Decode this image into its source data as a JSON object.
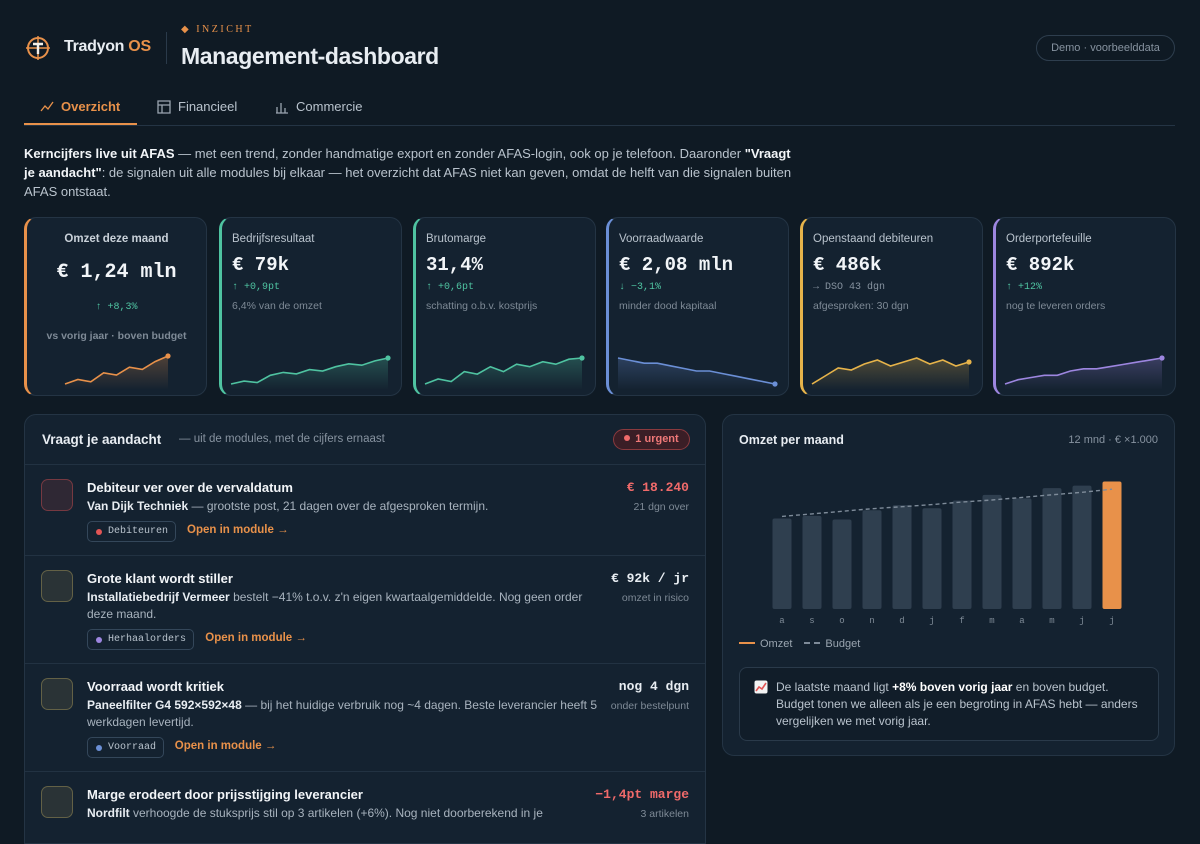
{
  "header": {
    "brand": "Tradyon",
    "brand_accent": "OS",
    "eyebrow": "INZICHT",
    "title": "Management-dashboard",
    "badge": "Demo · voorbeelddata"
  },
  "tabs": {
    "items": [
      "Overzicht",
      "Financieel",
      "Commercie"
    ],
    "active": 0
  },
  "intro": {
    "strong1": "Kerncijfers live uit AFAS",
    "text1": " — met een trend, zonder handmatige export en zonder AFAS-login, ook op je telefoon. Daaronder ",
    "strong2": "\"Vraagt je aandacht\"",
    "text2": ": de signalen uit alle modules bij elkaar — het overzicht dat AFAS niet kan geven, omdat de helft van die signalen buiten AFAS ontstaat."
  },
  "kpis": [
    {
      "label": "Omzet deze maand",
      "value": "€ 1,24 mln",
      "delta": "↑ +8,3%",
      "delta_color": "#4fc3a1",
      "note": "vs vorig jaar · boven budget",
      "color": "#e8914a",
      "spark": [
        20,
        24,
        22,
        30,
        28,
        35,
        33,
        40,
        45
      ]
    },
    {
      "label": "Bedrijfsresultaat",
      "value": "€ 79k",
      "delta": "↑ +0,9pt",
      "delta_color": "#4fc3a1",
      "note": "6,4% van de omzet",
      "color": "#4fc3a1",
      "spark": [
        10,
        12,
        11,
        16,
        18,
        17,
        20,
        19,
        22,
        24,
        23,
        26,
        28
      ]
    },
    {
      "label": "Brutomarge",
      "value": "31,4%",
      "delta": "↑ +0,6pt",
      "delta_color": "#4fc3a1",
      "note": "schatting o.b.v. kostprijs",
      "color": "#4fc3a1",
      "spark": [
        10,
        14,
        12,
        20,
        18,
        24,
        20,
        26,
        24,
        28,
        26,
        30,
        31
      ]
    },
    {
      "label": "Voorraadwaarde",
      "value": "€ 2,08 mln",
      "delta": "↓ −3,1%",
      "delta_color": "#4fc3a1",
      "note": "minder dood kapitaal",
      "color": "#6b8fd6",
      "spark": [
        30,
        29,
        28,
        28,
        27,
        26,
        25,
        25,
        24,
        23,
        22,
        21,
        20
      ]
    },
    {
      "label": "Openstaand debiteuren",
      "value": "€ 486k",
      "delta": "→ DSO 43 dgn",
      "delta_color": "#8793a0",
      "note": "afgesproken: 30 dgn",
      "color": "#e6b34a",
      "spark": [
        10,
        14,
        18,
        17,
        20,
        22,
        19,
        21,
        23,
        20,
        22,
        19,
        21
      ]
    },
    {
      "label": "Orderportefeuille",
      "value": "€ 892k",
      "delta": "↑ +12%",
      "delta_color": "#4fc3a1",
      "note": "nog te leveren orders",
      "color": "#9d86e0",
      "spark": [
        10,
        12,
        13,
        14,
        14,
        16,
        17,
        17,
        18,
        19,
        20,
        21,
        22
      ]
    }
  ],
  "attention": {
    "title": "Vraagt je aandacht",
    "subtitle": "— uit de modules, met de cijfers ernaast",
    "badge": "1 urgent",
    "items": [
      {
        "title": "Debiteur ver over de vervaldatum",
        "lead": "Van Dijk Techniek",
        "text": " — grootste post, 21 dagen over de afgesproken termijn.",
        "tag": "Debiteuren",
        "tag_color": "#e25555",
        "link": "Open in module →",
        "amount": "€ 18.240",
        "amount_color": "#f06a6a",
        "amount_note": "21 dgn over",
        "tone": "#e25555"
      },
      {
        "title": "Grote klant wordt stiller",
        "lead": "Installatiebedrijf Vermeer",
        "text": " bestelt −41% t.o.v. z'n eigen kwartaalgemiddelde. Nog geen order deze maand.",
        "tag": "Herhaalorders",
        "tag_color": "#9d86e0",
        "link": "Open in module →",
        "amount": "€ 92k / jr",
        "amount_color": "#e8edf2",
        "amount_note": "omzet in risico",
        "tone": "#b8a860"
      },
      {
        "title": "Voorraad wordt kritiek",
        "lead": "Paneelfilter G4 592×592×48",
        "text": " — bij het huidige verbruik nog ~4 dagen. Beste leverancier heeft 5 werkdagen levertijd.",
        "tag": "Voorraad",
        "tag_color": "#6b8fd6",
        "link": "Open in module →",
        "amount": "nog 4 dgn",
        "amount_color": "#e8edf2",
        "amount_note": "onder bestelpunt",
        "tone": "#b8a860"
      },
      {
        "title": "Marge erodeert door prijsstijging leverancier",
        "lead": "Nordfilt",
        "text": " verhoogde de stuksprijs stil op 3 artikelen (+6%). Nog niet doorberekend in je",
        "amount": "−1,4pt marge",
        "amount_color": "#f06a6a",
        "amount_note": "3 artikelen",
        "tone": "#b8a860"
      }
    ]
  },
  "chart_data": {
    "type": "bar",
    "title": "Omzet per maand",
    "subtitle": "12 mnd · € ×1.000",
    "categories": [
      "a",
      "s",
      "o",
      "n",
      "d",
      "j",
      "f",
      "m",
      "a",
      "m",
      "j",
      "j"
    ],
    "series": [
      {
        "name": "Omzet",
        "color": "#e8914a",
        "past_color": "#2f3f4f",
        "values": [
          880,
          905,
          870,
          960,
          1010,
          980,
          1055,
          1110,
          1075,
          1175,
          1200,
          1240
        ]
      },
      {
        "name": "Budget",
        "color": "#7e8b99",
        "values": [
          900,
          925,
          950,
          975,
          995,
          1015,
          1040,
          1060,
          1085,
          1110,
          1135,
          1165
        ]
      }
    ],
    "ylim": [
      0,
      1400
    ],
    "note": {
      "text1": "De laatste maand ligt ",
      "strong": "+8% boven vorig jaar",
      "text2": " en boven budget. Budget tonen we alleen als je een begroting in AFAS hebt — anders vergelijken we met vorig jaar."
    }
  }
}
